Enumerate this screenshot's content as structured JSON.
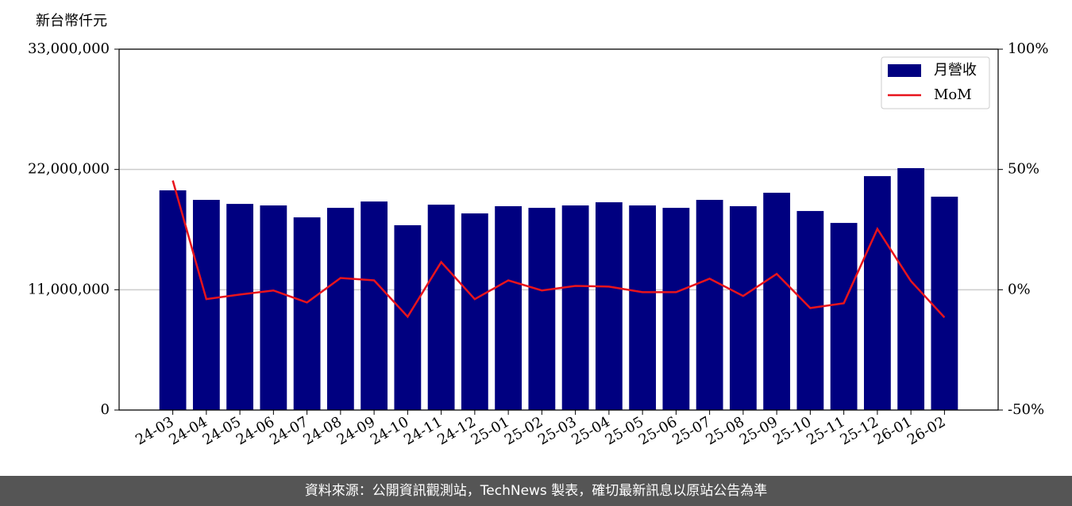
{
  "chart_data": {
    "type": "bar",
    "ylabel": "新台幣仟元",
    "categories": [
      "24-03",
      "24-04",
      "24-05",
      "24-06",
      "24-07",
      "24-08",
      "24-09",
      "24-10",
      "24-11",
      "24-12",
      "25-01",
      "25-02",
      "25-03",
      "25-04",
      "25-05",
      "25-06",
      "25-07",
      "25-08",
      "25-09",
      "25-10",
      "25-11",
      "25-12",
      "26-01",
      "26-02"
    ],
    "series": [
      {
        "name": "月營收",
        "type": "bar",
        "color": "#000080",
        "values": [
          20090000,
          19220000,
          18850000,
          18710000,
          17620000,
          18490000,
          19070000,
          16900000,
          18780000,
          17980000,
          18640000,
          18490000,
          18710000,
          19000000,
          18710000,
          18490000,
          19220000,
          18640000,
          19870000,
          18200000,
          17110000,
          21390000,
          22120000,
          19510000
        ]
      },
      {
        "name": "MoM",
        "type": "line",
        "axis": "y2",
        "color": "#e8141c",
        "values": [
          45.4,
          -3.9,
          -2.0,
          -0.3,
          -5.3,
          4.9,
          3.9,
          -11.2,
          11.5,
          -3.9,
          3.9,
          -0.3,
          1.6,
          1.3,
          -1.0,
          -1.0,
          4.6,
          -2.6,
          6.6,
          -7.6,
          -5.6,
          25.3,
          3.6,
          -11.5
        ]
      }
    ],
    "ylim": [
      0,
      33000000
    ],
    "yticks": [
      0,
      {
        "value": 11000000,
        "label": "11,000,000"
      },
      {
        "value": 22000000,
        "label": "22,000,000"
      },
      {
        "value": 33000000,
        "label": "33,000,000"
      }
    ],
    "y2lim": [
      -50,
      100
    ],
    "y2ticks": [
      {
        "value": -50,
        "label": "-50%"
      },
      {
        "value": 0,
        "label": "0%"
      },
      {
        "value": 50,
        "label": "50%"
      },
      {
        "value": 100,
        "label": "100%"
      }
    ],
    "grid": true,
    "legend": "upper right"
  },
  "footer": "資料來源：公開資訊觀測站，TechNews 製表，確切最新訊息以原站公告為準"
}
